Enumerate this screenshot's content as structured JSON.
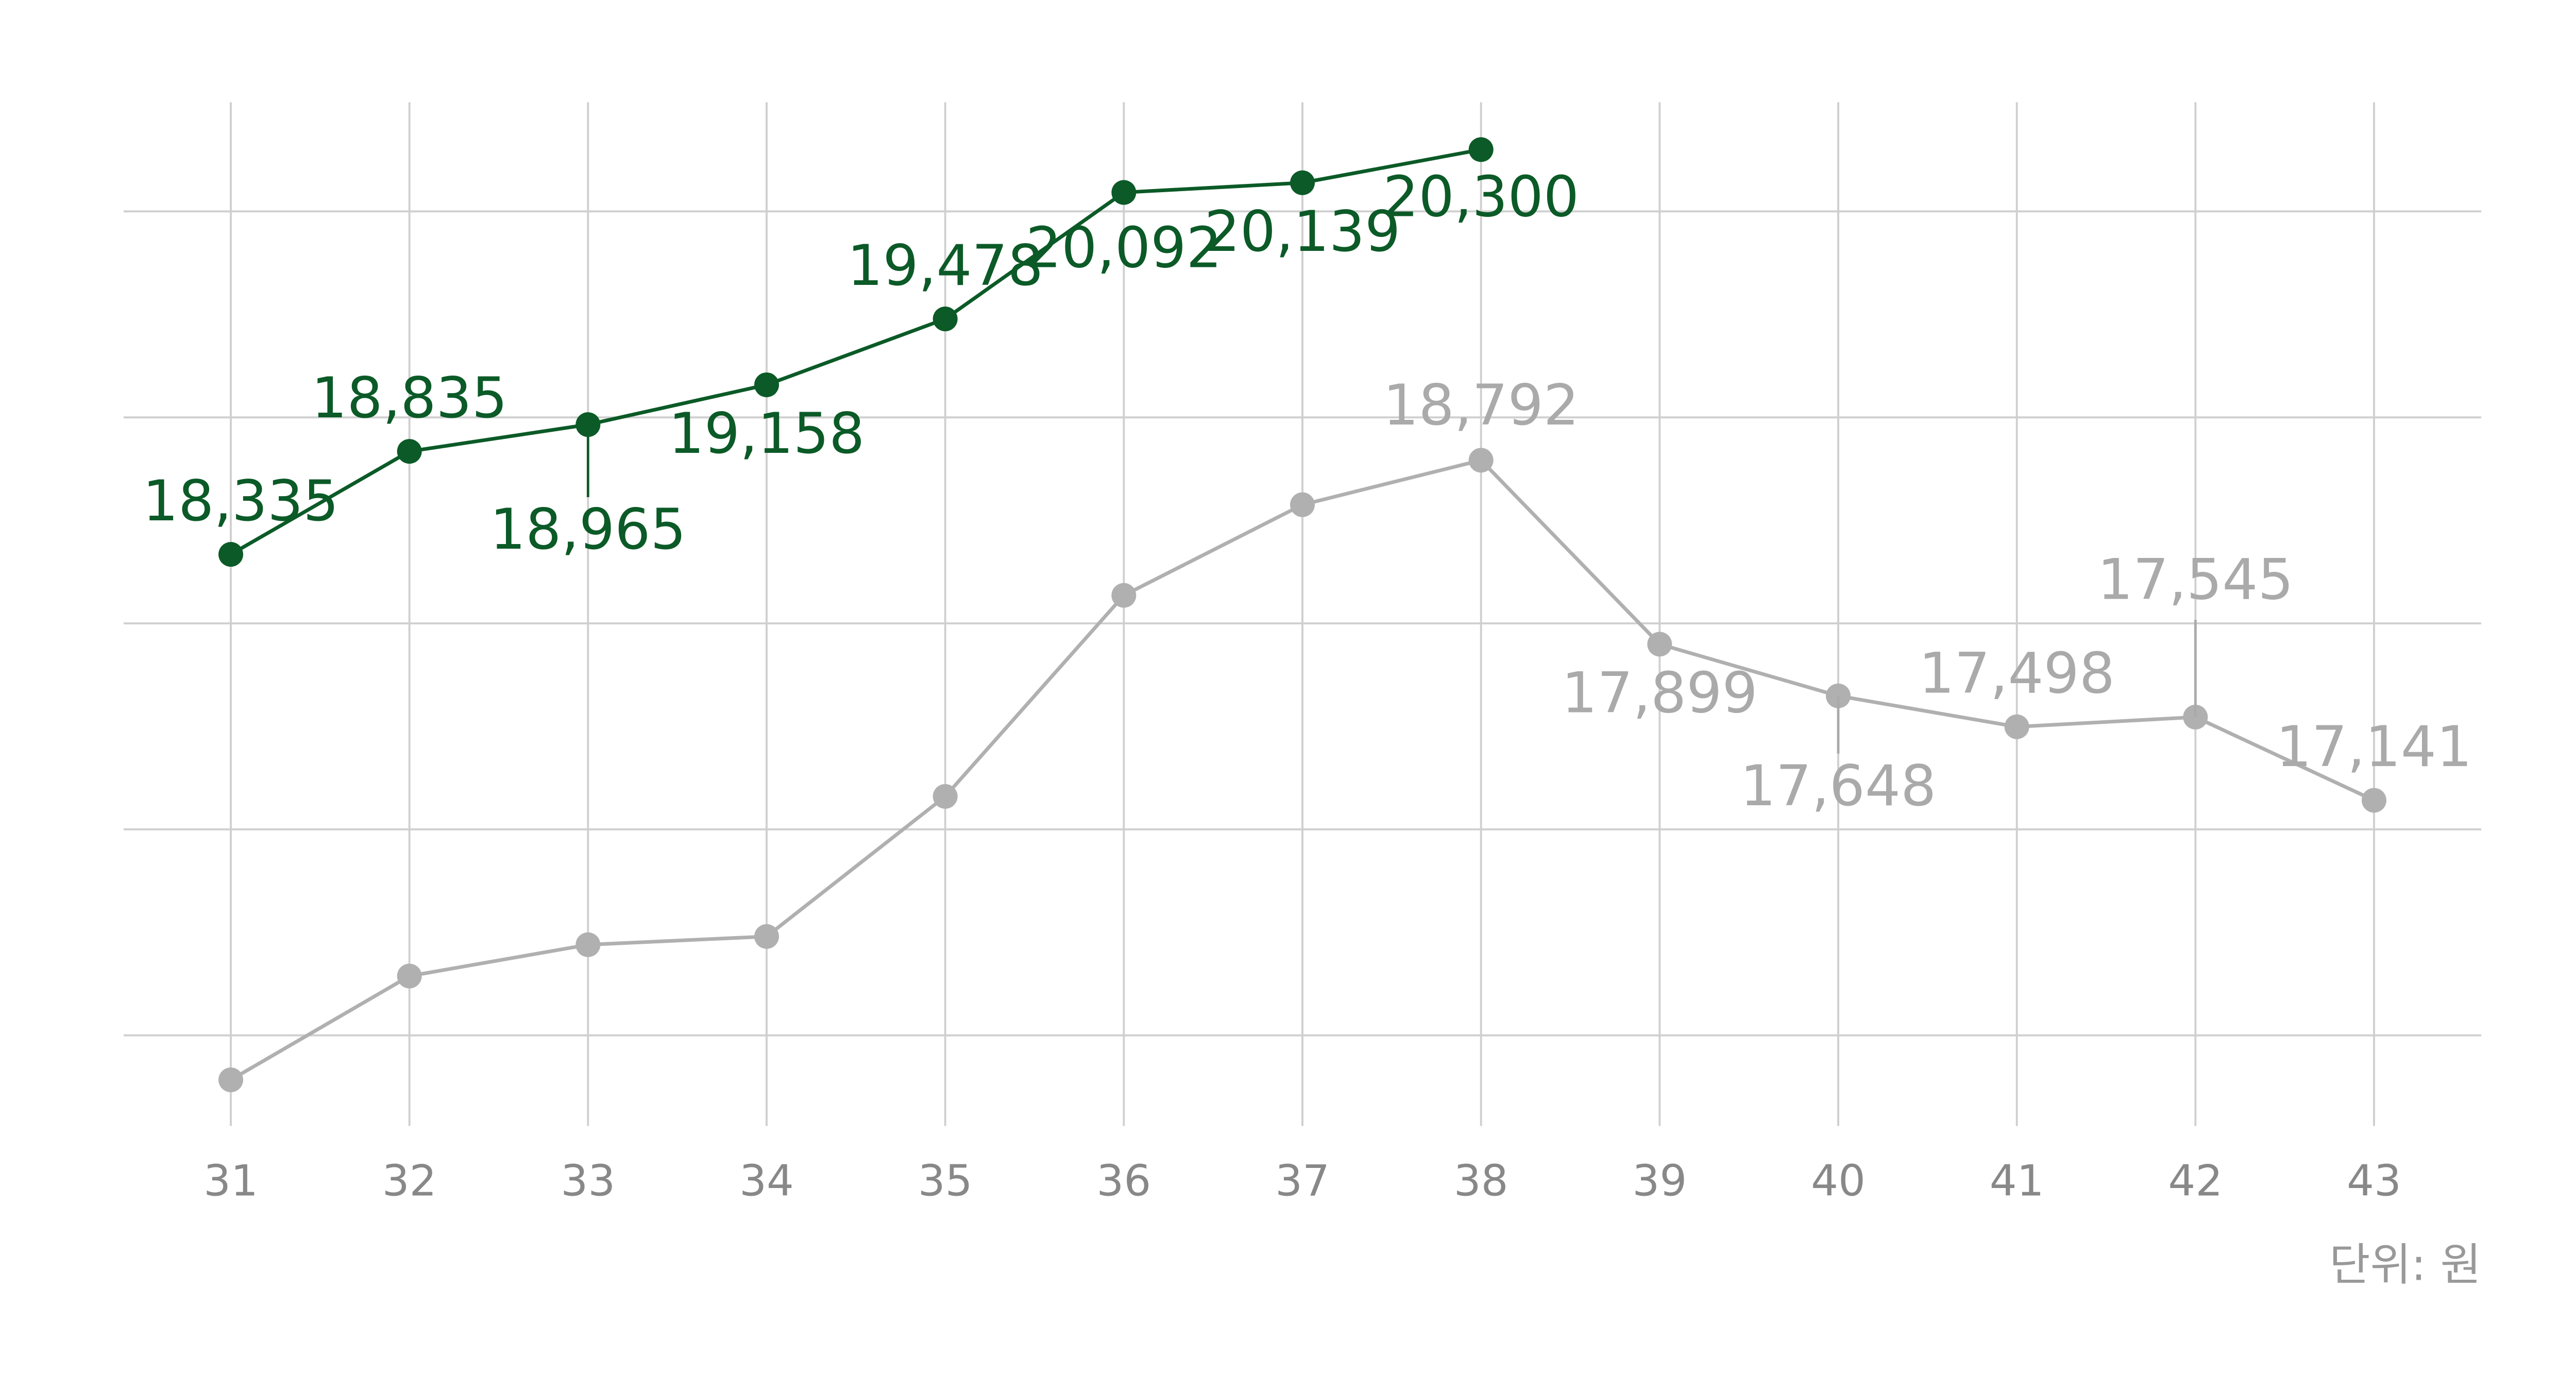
{
  "chart_data": {
    "type": "line",
    "categories": [
      "31",
      "32",
      "33",
      "34",
      "35",
      "36",
      "37",
      "38",
      "39",
      "40",
      "41",
      "42",
      "43"
    ],
    "series": [
      {
        "color": "#b0b0b0",
        "values": [
          15784,
          16288,
          16440,
          16480,
          17160,
          18136,
          18576,
          18792,
          17899,
          17648,
          17498,
          17545,
          17141
        ],
        "value_labels": [
          null,
          null,
          null,
          null,
          null,
          null,
          null,
          "18,792",
          "17,899",
          "17,648",
          "17,498",
          "17,545",
          "17,141"
        ]
      },
      {
        "color": "#0b5a27",
        "values": [
          18335,
          18835,
          18965,
          19158,
          19478,
          20092,
          20139,
          20300,
          null,
          null,
          null,
          null,
          null
        ],
        "value_labels": [
          "18,335",
          "18,835",
          "18,965",
          "19,158",
          "19,478",
          "20,092",
          "20,139",
          "20,300",
          null,
          null,
          null,
          null,
          null
        ]
      }
    ],
    "ylim": [
      15560,
      20530
    ],
    "yticks": [
      16000,
      17000,
      18000,
      19000,
      20000
    ],
    "grid": true,
    "annotation": "단위: 원"
  }
}
